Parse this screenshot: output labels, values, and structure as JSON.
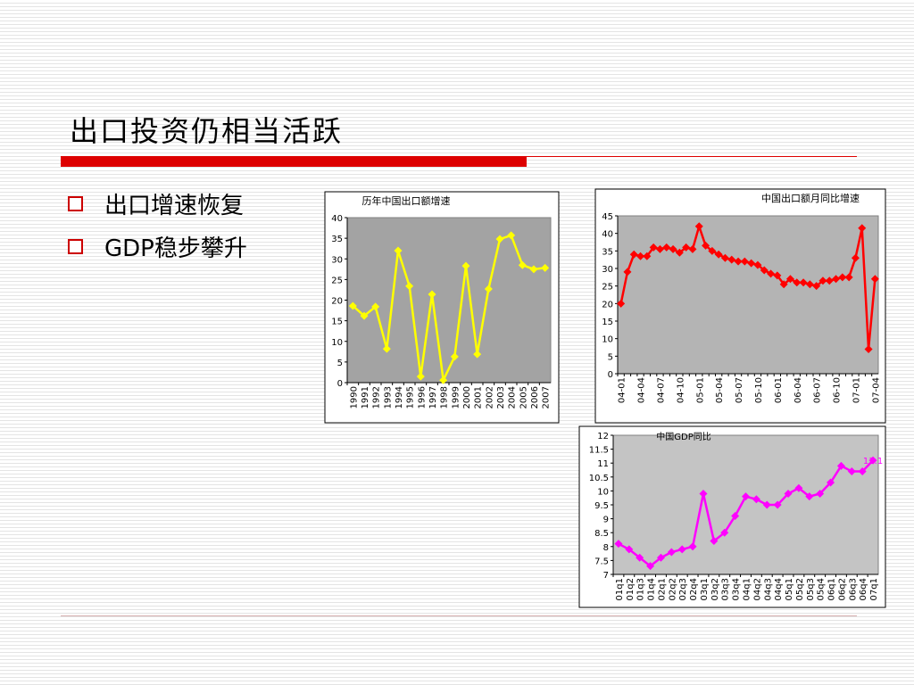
{
  "title": "出口投资仍相当活跃",
  "bullets": [
    "出口增速恢复",
    "GDP稳步攀升"
  ],
  "chart_data": [
    {
      "type": "line",
      "title": "历年中国出口额增速",
      "categories": [
        "1990",
        "1991",
        "1992",
        "1993",
        "1994",
        "1995",
        "1996",
        "1997",
        "1998",
        "1999",
        "2000",
        "2001",
        "2002",
        "2003",
        "2004",
        "2005",
        "2006",
        "2007"
      ],
      "values": [
        18.6,
        16.2,
        18.4,
        8.2,
        32,
        23.4,
        1.5,
        21.4,
        0.6,
        6.3,
        28.3,
        6.9,
        22.7,
        34.8,
        35.7,
        28.5,
        27.5,
        27.8
      ],
      "color": "#ffff00",
      "ylim": [
        0,
        40
      ],
      "yticks": [
        0,
        5,
        10,
        15,
        20,
        25,
        30,
        35,
        40
      ]
    },
    {
      "type": "line",
      "title": "中国出口额月同比增速",
      "categories": [
        "04-01",
        null,
        null,
        "04-04",
        null,
        null,
        "04-07",
        null,
        null,
        "04-10",
        null,
        null,
        "05-01",
        null,
        null,
        "05-04",
        null,
        null,
        "05-07",
        null,
        null,
        "05-10",
        null,
        null,
        "06-01",
        null,
        null,
        "06-04",
        null,
        null,
        "06-07",
        null,
        null,
        "06-10",
        null,
        null,
        "07-01",
        null,
        null,
        "07-04"
      ],
      "values": [
        20,
        29,
        34,
        33.5,
        33.5,
        36,
        35.5,
        36,
        35.5,
        34.5,
        36,
        35.5,
        42,
        36.5,
        35,
        34,
        33,
        32.5,
        32,
        32,
        31.5,
        31,
        29.5,
        28.5,
        28,
        25.5,
        27,
        26,
        26,
        25.5,
        25,
        26.5,
        26.5,
        27,
        27.5,
        27.5,
        33,
        41.5,
        7,
        27
      ],
      "color": "#ff0000",
      "ylim": [
        0,
        45
      ],
      "yticks": [
        0,
        5,
        10,
        15,
        20,
        25,
        30,
        35,
        40,
        45
      ]
    },
    {
      "type": "line",
      "title": "中国GDP同比",
      "categories": [
        "01q1",
        "01q2",
        "01q3",
        "01q4",
        "02q1",
        "02q2",
        "02q3",
        "02q4",
        "03q1",
        "03q2",
        "03q3",
        "03q4",
        "04q1",
        "04q2",
        "04q3",
        "04q4",
        "05q1",
        "05q2",
        "05q3",
        "05q4",
        "06q1",
        "06q2",
        "06q3",
        "06q4",
        "07q1"
      ],
      "values": [
        8.1,
        7.9,
        7.6,
        7.3,
        7.6,
        7.8,
        7.9,
        8.0,
        9.9,
        8.2,
        8.5,
        9.1,
        9.8,
        9.7,
        9.5,
        9.5,
        9.9,
        10.1,
        9.8,
        9.9,
        10.3,
        10.9,
        10.7,
        10.7,
        11.1
      ],
      "color": "#ff00ff",
      "ylim": [
        7,
        12
      ],
      "yticks": [
        7,
        7.5,
        8,
        8.5,
        9,
        9.5,
        10,
        10.5,
        11,
        11.5,
        12
      ],
      "last_value_label": true
    }
  ]
}
